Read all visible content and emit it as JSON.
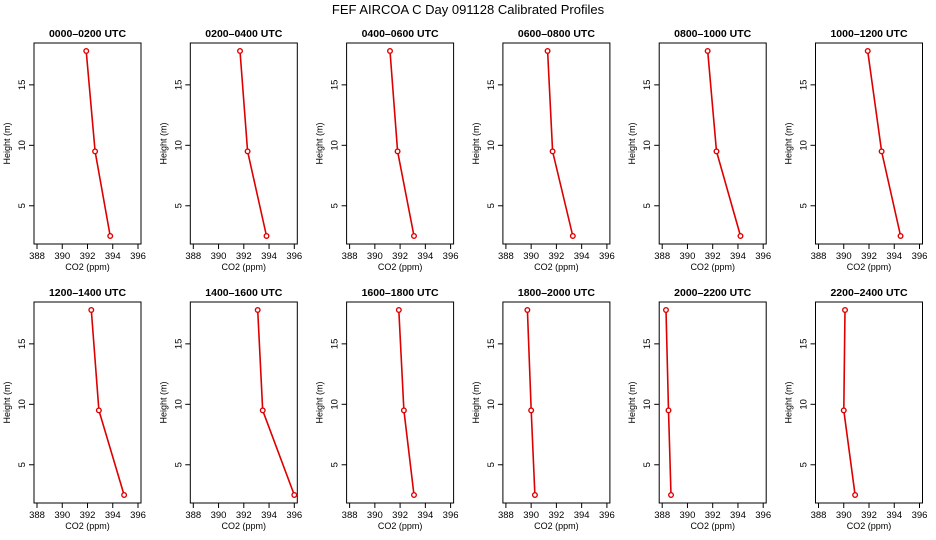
{
  "figure": {
    "title": "FEF AIRCOA C  Day 091128  Calibrated Profiles",
    "xlabel": "CO2 (ppm)",
    "ylabel": "Height (m)"
  },
  "colors": {
    "series": "#dd0000",
    "axis": "#000000"
  },
  "chart_data": [
    {
      "type": "line",
      "title": "0000–0200 UTC",
      "xlim": [
        388,
        396
      ],
      "ylim": [
        2.5,
        17.8
      ],
      "x_ticks": [
        388,
        390,
        392,
        394,
        396
      ],
      "y_ticks": [
        5,
        10,
        15
      ],
      "series": [
        {
          "points": [
            {
              "x": 391.9,
              "y": 17.8
            },
            {
              "x": 392.6,
              "y": 9.5
            },
            {
              "x": 393.8,
              "y": 2.5
            }
          ]
        }
      ]
    },
    {
      "type": "line",
      "title": "0200–0400 UTC",
      "xlim": [
        388,
        396
      ],
      "ylim": [
        2.5,
        17.8
      ],
      "x_ticks": [
        388,
        390,
        392,
        394,
        396
      ],
      "y_ticks": [
        5,
        10,
        15
      ],
      "series": [
        {
          "points": [
            {
              "x": 391.7,
              "y": 17.8
            },
            {
              "x": 392.3,
              "y": 9.5
            },
            {
              "x": 393.8,
              "y": 2.5
            }
          ]
        }
      ]
    },
    {
      "type": "line",
      "title": "0400–0600 UTC",
      "xlim": [
        388,
        396
      ],
      "ylim": [
        2.5,
        17.8
      ],
      "x_ticks": [
        388,
        390,
        392,
        394,
        396
      ],
      "y_ticks": [
        5,
        10,
        15
      ],
      "series": [
        {
          "points": [
            {
              "x": 391.2,
              "y": 17.8
            },
            {
              "x": 391.8,
              "y": 9.5
            },
            {
              "x": 393.1,
              "y": 2.5
            }
          ]
        }
      ]
    },
    {
      "type": "line",
      "title": "0600–0800 UTC",
      "xlim": [
        388,
        396
      ],
      "ylim": [
        2.5,
        17.8
      ],
      "x_ticks": [
        388,
        390,
        392,
        394,
        396
      ],
      "y_ticks": [
        5,
        10,
        15
      ],
      "series": [
        {
          "points": [
            {
              "x": 391.3,
              "y": 17.8
            },
            {
              "x": 391.7,
              "y": 9.5
            },
            {
              "x": 393.3,
              "y": 2.5
            }
          ]
        }
      ]
    },
    {
      "type": "line",
      "title": "0800–1000 UTC",
      "xlim": [
        388,
        396
      ],
      "ylim": [
        2.5,
        17.8
      ],
      "x_ticks": [
        388,
        390,
        392,
        394,
        396
      ],
      "y_ticks": [
        5,
        10,
        15
      ],
      "series": [
        {
          "points": [
            {
              "x": 391.6,
              "y": 17.8
            },
            {
              "x": 392.3,
              "y": 9.5
            },
            {
              "x": 394.2,
              "y": 2.5
            }
          ]
        }
      ]
    },
    {
      "type": "line",
      "title": "1000–1200 UTC",
      "xlim": [
        388,
        396
      ],
      "ylim": [
        2.5,
        17.8
      ],
      "x_ticks": [
        388,
        390,
        392,
        394,
        396
      ],
      "y_ticks": [
        5,
        10,
        15
      ],
      "series": [
        {
          "points": [
            {
              "x": 391.9,
              "y": 17.8
            },
            {
              "x": 393.0,
              "y": 9.5
            },
            {
              "x": 394.5,
              "y": 2.5
            }
          ]
        }
      ]
    },
    {
      "type": "line",
      "title": "1200–1400 UTC",
      "xlim": [
        388,
        396
      ],
      "ylim": [
        2.5,
        17.8
      ],
      "x_ticks": [
        388,
        390,
        392,
        394,
        396
      ],
      "y_ticks": [
        5,
        10,
        15
      ],
      "series": [
        {
          "points": [
            {
              "x": 392.3,
              "y": 17.8
            },
            {
              "x": 392.9,
              "y": 9.5
            },
            {
              "x": 394.9,
              "y": 2.5
            }
          ]
        }
      ]
    },
    {
      "type": "line",
      "title": "1400–1600 UTC",
      "xlim": [
        388,
        396
      ],
      "ylim": [
        2.5,
        17.8
      ],
      "x_ticks": [
        388,
        390,
        392,
        394,
        396
      ],
      "y_ticks": [
        5,
        10,
        15
      ],
      "series": [
        {
          "points": [
            {
              "x": 393.1,
              "y": 17.8
            },
            {
              "x": 393.5,
              "y": 9.5
            },
            {
              "x": 396.0,
              "y": 2.5
            }
          ]
        }
      ]
    },
    {
      "type": "line",
      "title": "1600–1800 UTC",
      "xlim": [
        388,
        396
      ],
      "ylim": [
        2.5,
        17.8
      ],
      "x_ticks": [
        388,
        390,
        392,
        394,
        396
      ],
      "y_ticks": [
        5,
        10,
        15
      ],
      "series": [
        {
          "points": [
            {
              "x": 391.9,
              "y": 17.8
            },
            {
              "x": 392.3,
              "y": 9.5
            },
            {
              "x": 393.1,
              "y": 2.5
            }
          ]
        }
      ]
    },
    {
      "type": "line",
      "title": "1800–2000 UTC",
      "xlim": [
        388,
        396
      ],
      "ylim": [
        2.5,
        17.8
      ],
      "x_ticks": [
        388,
        390,
        392,
        394,
        396
      ],
      "y_ticks": [
        5,
        10,
        15
      ],
      "series": [
        {
          "points": [
            {
              "x": 389.7,
              "y": 17.8
            },
            {
              "x": 390.0,
              "y": 9.5
            },
            {
              "x": 390.3,
              "y": 2.5
            }
          ]
        }
      ]
    },
    {
      "type": "line",
      "title": "2000–2200 UTC",
      "xlim": [
        388,
        396
      ],
      "ylim": [
        2.5,
        17.8
      ],
      "x_ticks": [
        388,
        390,
        392,
        394,
        396
      ],
      "y_ticks": [
        5,
        10,
        15
      ],
      "series": [
        {
          "points": [
            {
              "x": 388.3,
              "y": 17.8
            },
            {
              "x": 388.5,
              "y": 9.5
            },
            {
              "x": 388.7,
              "y": 2.5
            }
          ]
        }
      ]
    },
    {
      "type": "line",
      "title": "2200–2400 UTC",
      "xlim": [
        388,
        396
      ],
      "ylim": [
        2.5,
        17.8
      ],
      "x_ticks": [
        388,
        390,
        392,
        394,
        396
      ],
      "y_ticks": [
        5,
        10,
        15
      ],
      "series": [
        {
          "points": [
            {
              "x": 390.1,
              "y": 17.8
            },
            {
              "x": 390.0,
              "y": 9.5
            },
            {
              "x": 390.9,
              "y": 2.5
            }
          ]
        }
      ]
    }
  ]
}
